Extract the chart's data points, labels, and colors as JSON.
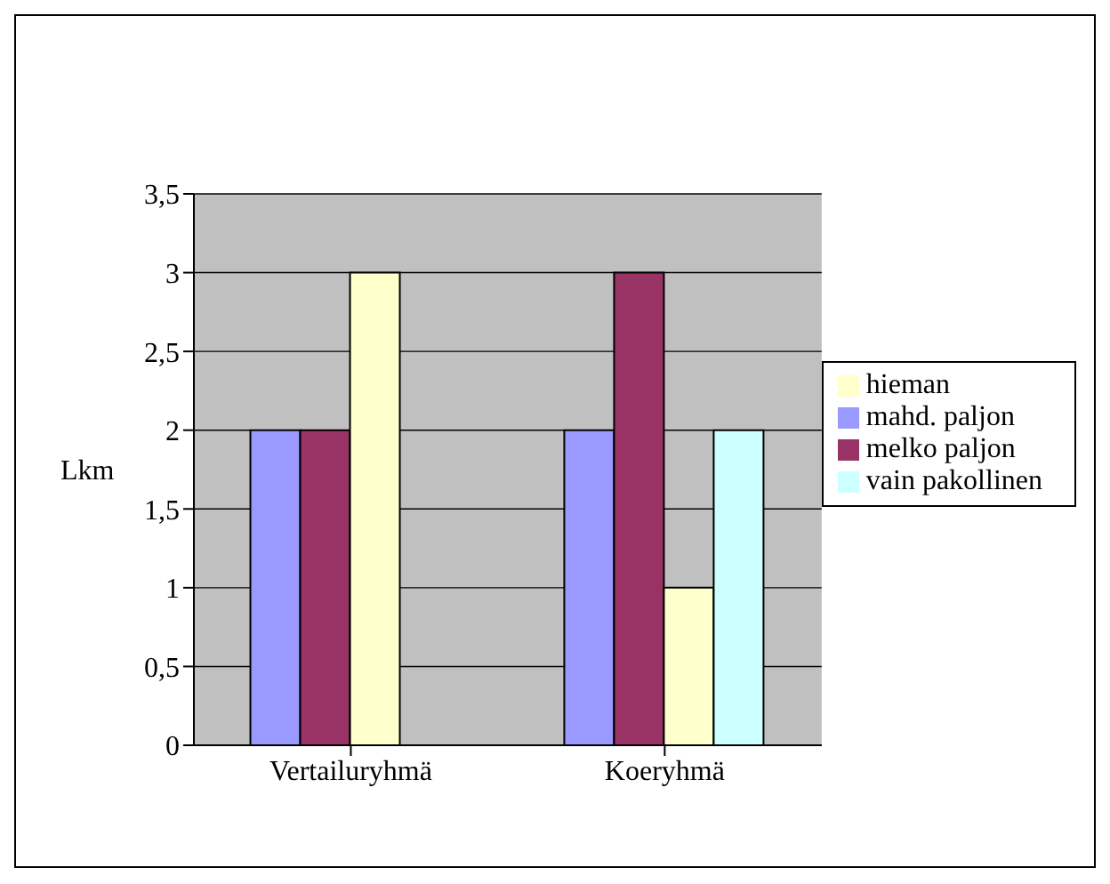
{
  "chart_data": {
    "type": "bar",
    "categories": [
      "Vertailuryhmä",
      "Koeryhmä"
    ],
    "series": [
      {
        "name": "mahd. paljon",
        "color": "#9999ff",
        "values": [
          2,
          2
        ]
      },
      {
        "name": "melko paljon",
        "color": "#993366",
        "values": [
          2,
          3
        ]
      },
      {
        "name": "hieman",
        "color": "#ffffcc",
        "values": [
          3,
          1
        ]
      },
      {
        "name": "vain pakollinen",
        "color": "#ccffff",
        "values": [
          0,
          2
        ]
      }
    ],
    "ylabel": "Lkm",
    "ylim": [
      0,
      3.5
    ],
    "yticks": [
      0,
      {
        "value": 0.5,
        "label": "0,5"
      },
      1,
      {
        "value": 1.5,
        "label": "1,5"
      },
      2,
      {
        "value": 2.5,
        "label": "2,5"
      },
      3,
      {
        "value": 3.5,
        "label": "3,5"
      }
    ],
    "grid": "y",
    "legend": "right"
  }
}
